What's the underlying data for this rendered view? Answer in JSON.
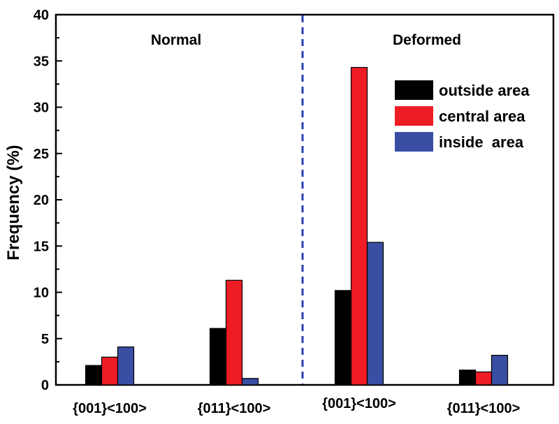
{
  "chart_data": {
    "type": "bar",
    "ylabel": "Frequency (%)",
    "xlabel": "",
    "ylim": [
      0,
      40
    ],
    "yticks": [
      0,
      5,
      10,
      15,
      20,
      25,
      30,
      35,
      40
    ],
    "ytick_labels": [
      "0",
      "5",
      "10",
      "15",
      "20",
      "25",
      "30",
      "35",
      "40"
    ],
    "categories": [
      "{001}<100>",
      "{011}<100>",
      "{001}<100>",
      "{011}<100>"
    ],
    "groups": [
      "Normal",
      "Deformed"
    ],
    "series": [
      {
        "name": "outside area",
        "color": "#000000",
        "values": [
          2.1,
          6.1,
          10.2,
          1.6
        ]
      },
      {
        "name": "central area",
        "color": "#ee1c25",
        "values": [
          3.0,
          11.3,
          34.3,
          1.4
        ]
      },
      {
        "name": "inside  area",
        "color": "#3a4fa3",
        "values": [
          4.1,
          0.7,
          15.4,
          3.2
        ]
      }
    ],
    "divider": {
      "style": "dashed",
      "color": "#2b3fb0"
    },
    "legend_position": "top-right",
    "grid": false
  }
}
